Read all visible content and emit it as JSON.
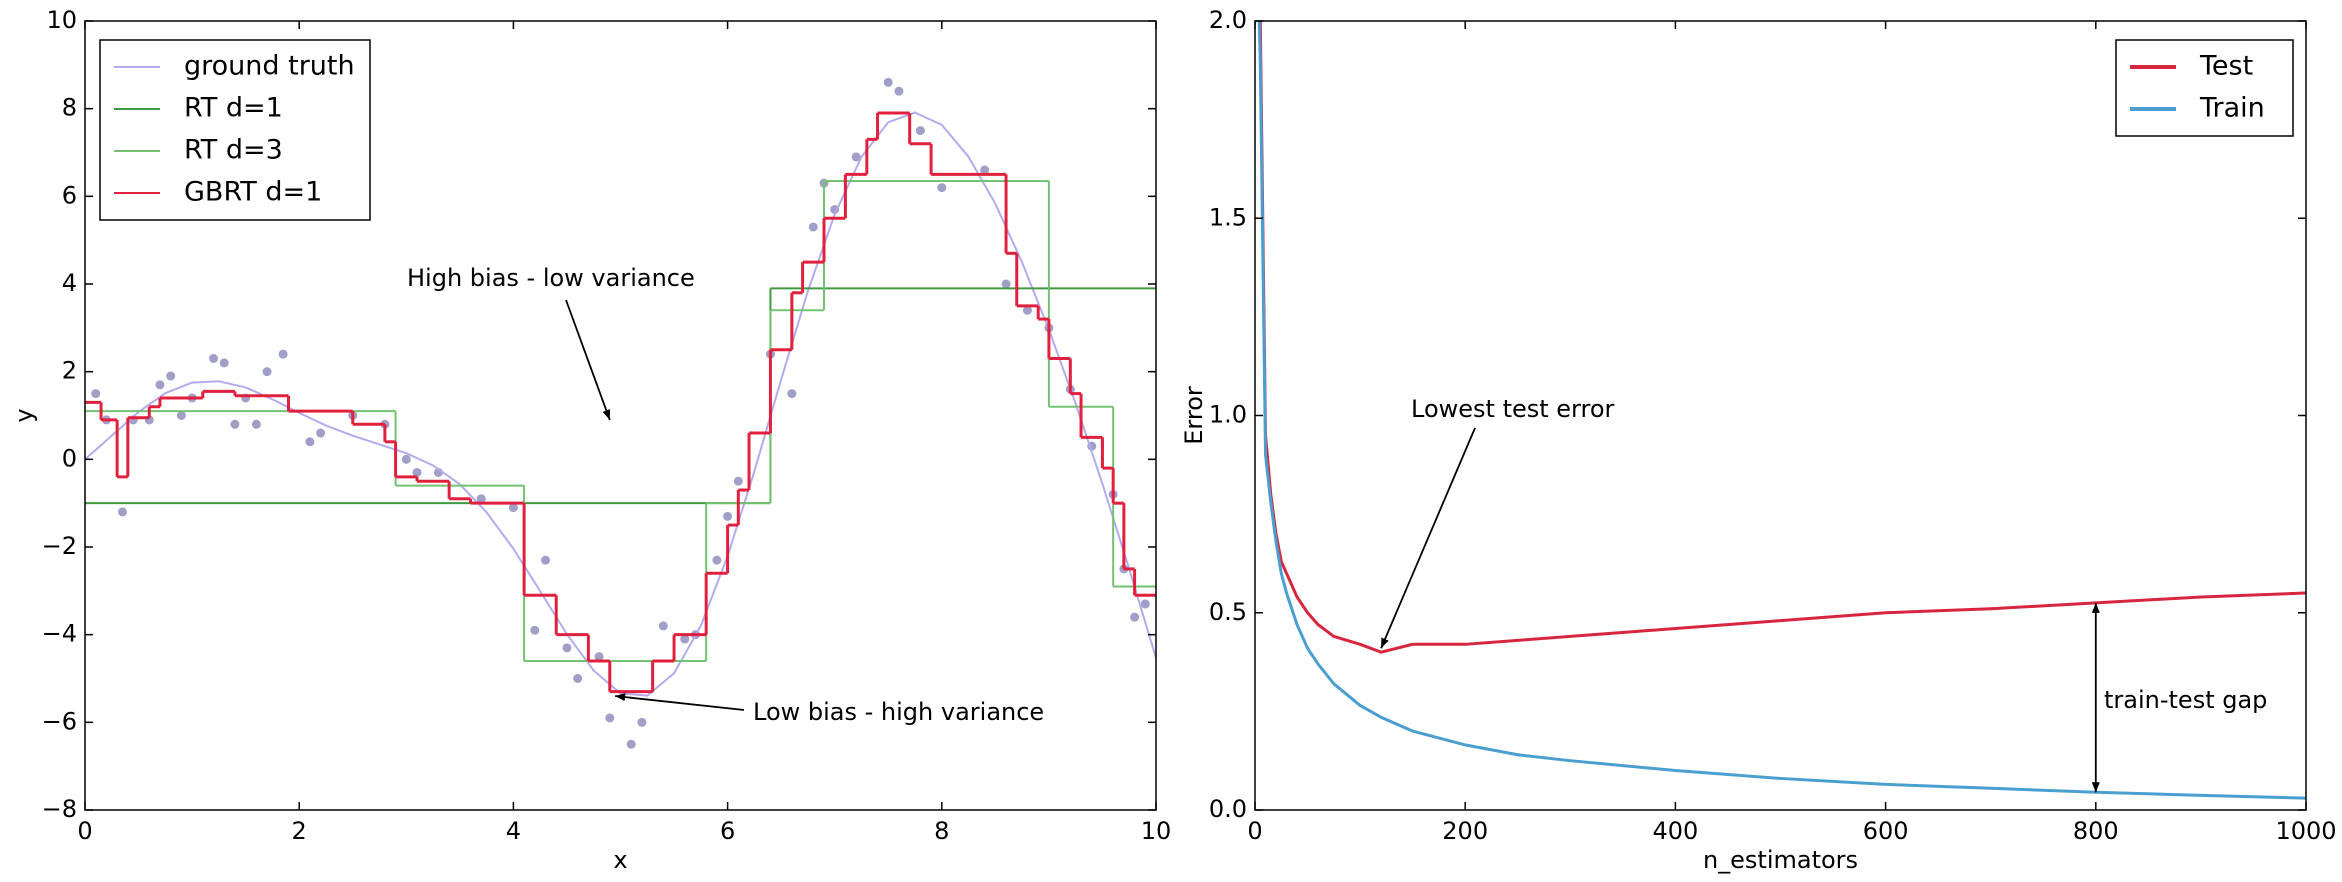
{
  "chart_data": [
    {
      "type": "line",
      "xlabel": "x",
      "ylabel": "y",
      "xlim": [
        0,
        10
      ],
      "ylim": [
        -8,
        10
      ],
      "xticks": [
        0,
        2,
        4,
        6,
        8,
        10
      ],
      "yticks": [
        {
          "value": -8,
          "label": "−8"
        },
        {
          "value": -6,
          "label": "−6"
        },
        {
          "value": -4,
          "label": "−4"
        },
        {
          "value": -2,
          "label": "−2"
        },
        0,
        2,
        4,
        6,
        8,
        10
      ],
      "legend": "upper left",
      "series": [
        {
          "name": "ground truth",
          "color": "#b4aaf0",
          "x": [
            0,
            0.25,
            0.5,
            0.75,
            1,
            1.25,
            1.5,
            1.75,
            2,
            2.25,
            2.5,
            2.75,
            3,
            3.25,
            3.5,
            3.75,
            4,
            4.25,
            4.5,
            4.75,
            5,
            5.25,
            5.5,
            5.75,
            6,
            6.25,
            6.5,
            6.75,
            7,
            7.25,
            7.5,
            7.75,
            8,
            8.25,
            8.5,
            8.75,
            9,
            9.25,
            9.5,
            9.75,
            10
          ],
          "values": [
            0,
            0.54,
            1.08,
            1.51,
            1.75,
            1.78,
            1.64,
            1.37,
            1.06,
            0.77,
            0.54,
            0.34,
            0.14,
            -0.14,
            -0.57,
            -1.21,
            -2.04,
            -3.01,
            -3.99,
            -4.82,
            -5.34,
            -5.39,
            -4.88,
            -3.8,
            -2.21,
            -0.27,
            1.82,
            3.84,
            5.59,
            6.9,
            7.69,
            7.91,
            7.63,
            6.9,
            5.83,
            4.49,
            2.96,
            1.27,
            -0.56,
            -2.5,
            -4.53
          ]
        },
        {
          "name": "RT d=1",
          "color": "#3f9a3f",
          "edges": [
            0,
            6.4,
            10
          ],
          "values": [
            -1,
            3.9
          ]
        },
        {
          "name": "RT d=3",
          "color": "#72c272",
          "edges": [
            0,
            2.9,
            4.1,
            5.8,
            6.4,
            6.9,
            9.0,
            9.6,
            10
          ],
          "values": [
            1.1,
            -0.6,
            -4.6,
            -1.0,
            3.4,
            6.35,
            1.2,
            -2.9
          ]
        },
        {
          "name": "GBRT d=1",
          "color": "#e0203c",
          "edges": [
            0,
            0.15,
            0.3,
            0.4,
            0.6,
            0.7,
            1.1,
            1.4,
            1.9,
            2.5,
            2.8,
            2.9,
            3.1,
            3.4,
            3.6,
            4.1,
            4.4,
            4.7,
            4.9,
            5.3,
            5.5,
            5.8,
            6.0,
            6.1,
            6.2,
            6.4,
            6.6,
            6.7,
            6.9,
            7.1,
            7.3,
            7.4,
            7.7,
            7.9,
            8.6,
            8.7,
            8.9,
            9.0,
            9.2,
            9.3,
            9.5,
            9.6,
            9.7,
            9.8,
            10
          ],
          "values": [
            1.3,
            0.9,
            -0.4,
            0.95,
            1.2,
            1.4,
            1.55,
            1.45,
            1.1,
            0.8,
            0.4,
            -0.4,
            -0.5,
            -0.9,
            -1.0,
            -3.1,
            -4.0,
            -4.6,
            -5.3,
            -4.6,
            -4.0,
            -2.6,
            -1.5,
            -0.7,
            0.6,
            2.5,
            3.8,
            4.5,
            5.5,
            6.5,
            7.3,
            7.9,
            7.2,
            6.5,
            4.7,
            3.5,
            3.2,
            2.3,
            1.5,
            0.5,
            -0.2,
            -1.0,
            -2.5,
            -3.1
          ]
        }
      ],
      "points": {
        "color": "#a09fc8",
        "x": [
          0.1,
          0.2,
          0.35,
          0.45,
          0.6,
          0.7,
          0.8,
          0.9,
          1.0,
          1.2,
          1.3,
          1.4,
          1.5,
          1.6,
          1.7,
          1.85,
          2.1,
          2.2,
          2.5,
          2.8,
          3.0,
          3.1,
          3.3,
          3.7,
          4.0,
          4.2,
          4.3,
          4.5,
          4.6,
          4.8,
          4.9,
          5.1,
          5.2,
          5.4,
          5.6,
          5.7,
          5.9,
          6.0,
          6.1,
          6.4,
          6.6,
          6.8,
          6.9,
          7.0,
          7.2,
          7.5,
          7.6,
          7.8,
          8.0,
          8.4,
          8.6,
          8.8,
          9.0,
          9.2,
          9.4,
          9.6,
          9.7,
          9.8,
          9.9
        ],
        "y": [
          1.5,
          0.9,
          -1.2,
          0.9,
          0.9,
          1.7,
          1.9,
          1.0,
          1.4,
          2.3,
          2.2,
          0.8,
          1.4,
          0.8,
          2.0,
          2.4,
          0.4,
          0.6,
          1.0,
          0.8,
          0,
          -0.3,
          -0.3,
          -0.9,
          -1.1,
          -3.9,
          -2.3,
          -4.3,
          -5.0,
          -4.5,
          -5.9,
          -6.5,
          -6.0,
          -3.8,
          -4.1,
          -4.0,
          -2.3,
          -1.3,
          -0.5,
          2.4,
          1.5,
          5.3,
          6.3,
          5.7,
          6.9,
          8.6,
          8.4,
          7.5,
          6.2,
          6.6,
          4.0,
          3.4,
          3.0,
          1.6,
          0.3,
          -0.8,
          -2.5,
          -3.6,
          -3.3
        ]
      },
      "annotations": [
        {
          "text": "High bias - low variance",
          "xy": [
            4.9,
            0.9
          ]
        },
        {
          "text": "Low bias - high variance",
          "xy": [
            4.95,
            -5.4
          ]
        }
      ]
    },
    {
      "type": "line",
      "xlabel": "n_estimators",
      "ylabel": "Error",
      "xlim": [
        0,
        1000
      ],
      "ylim": [
        0,
        2
      ],
      "xticks": [
        0,
        200,
        400,
        600,
        800,
        1000
      ],
      "yticks": [
        {
          "value": 0,
          "label": "0.0"
        },
        0.5,
        {
          "value": 1,
          "label": "1.0"
        },
        1.5,
        {
          "value": 2,
          "label": "2.0"
        }
      ],
      "legend": "upper right",
      "x": [
        1,
        5,
        10,
        15,
        20,
        25,
        30,
        40,
        50,
        60,
        75,
        100,
        120,
        150,
        200,
        250,
        300,
        400,
        500,
        600,
        700,
        800,
        900,
        1000
      ],
      "series": [
        {
          "name": "Test",
          "color": "#d7263d",
          "values": [
            2.3,
            2.0,
            0.95,
            0.8,
            0.7,
            0.63,
            0.6,
            0.54,
            0.5,
            0.47,
            0.44,
            0.42,
            0.4,
            0.42,
            0.42,
            0.43,
            0.44,
            0.46,
            0.48,
            0.5,
            0.51,
            0.525,
            0.54,
            0.55
          ]
        },
        {
          "name": "Train",
          "color": "#4b9fd0",
          "values": [
            2.3,
            1.9,
            0.9,
            0.78,
            0.68,
            0.6,
            0.55,
            0.47,
            0.41,
            0.37,
            0.32,
            0.265,
            0.235,
            0.2,
            0.165,
            0.14,
            0.125,
            0.1,
            0.08,
            0.065,
            0.055,
            0.045,
            0.037,
            0.03
          ]
        }
      ],
      "annotations": [
        {
          "text": "Lowest test error",
          "xy": [
            120,
            0.41
          ]
        },
        {
          "text": "train-test gap",
          "xy": [
            800,
            0.045
          ],
          "xy2": [
            800,
            0.525
          ]
        }
      ]
    }
  ]
}
